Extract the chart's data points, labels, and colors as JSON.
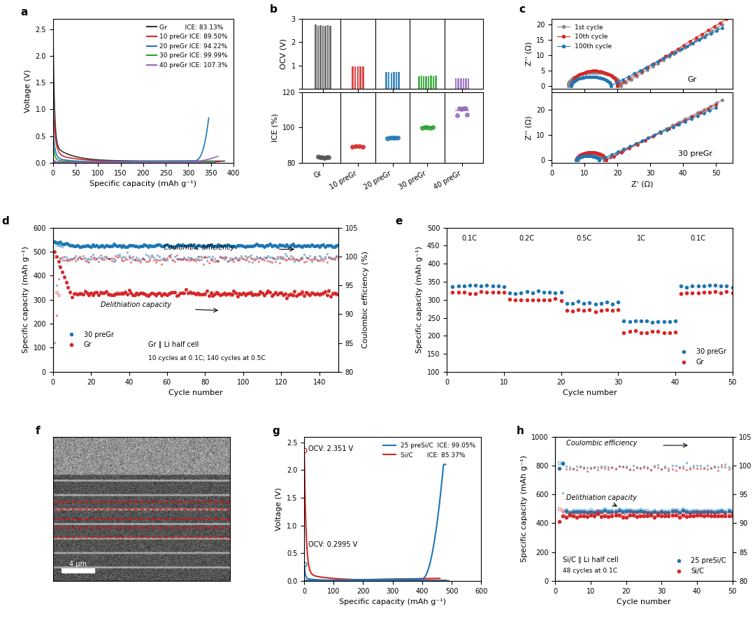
{
  "panel_a": {
    "colors": {
      "Gr": "#333333",
      "10preGr": "#d62728",
      "20preGr": "#1f77b4",
      "30preGr": "#2ca02c",
      "40preGr": "#9467bd"
    },
    "xlabel": "Specific capacity (mAh g⁻¹)",
    "ylabel": "Voltage (V)",
    "xlim": [
      0,
      400
    ],
    "ylim": [
      0,
      2.7
    ]
  },
  "panel_b": {
    "categories": [
      "Gr",
      "10 preGr",
      "20 preGr",
      "30 preGr",
      "40 preGr"
    ],
    "colors": [
      "#555555",
      "#d62728",
      "#1f77b4",
      "#2ca02c",
      "#9467bd"
    ],
    "ocv_values": [
      [
        2.75,
        2.7,
        2.72,
        2.68,
        2.7,
        2.71,
        2.69
      ],
      [
        0.97,
        0.96,
        0.95,
        0.97,
        0.95
      ],
      [
        0.72,
        0.71,
        0.7,
        0.72,
        0.71,
        0.73
      ],
      [
        0.55,
        0.56,
        0.55,
        0.54,
        0.55,
        0.56,
        0.55,
        0.56
      ],
      [
        0.45,
        0.46,
        0.45,
        0.46,
        0.45,
        0.44
      ]
    ],
    "ice_values": [
      [
        83.5,
        83.0,
        83.2,
        82.8,
        83.1,
        82.9
      ],
      [
        89.0,
        89.5,
        89.3,
        89.2
      ],
      [
        94.0,
        94.3,
        94.2,
        94.1,
        94.4
      ],
      [
        99.9,
        100.1,
        100.0,
        99.8,
        100.2
      ],
      [
        107.0,
        111.0,
        110.5,
        111.0,
        110.8,
        107.5
      ]
    ],
    "ocv_ylabel": "OCV (V)",
    "ice_ylabel": "ICE (%)",
    "ocv_ylim": [
      0,
      3
    ],
    "ice_ylim": [
      80,
      120
    ],
    "ice_yticks": [
      80,
      100,
      120
    ]
  },
  "panel_c": {
    "colors": {
      "1st": "#888888",
      "10th": "#d62728",
      "100th": "#1f77b4"
    },
    "xlabel": "Z' (Ω)",
    "ylabel": "Z'' (Ω)"
  },
  "panel_d": {
    "xlabel": "Cycle number",
    "ylabel_left": "Specific capacity (mAh g⁻¹)",
    "ylabel_right": "Coulombic efficiency (%)",
    "color1": "#1f77b4",
    "color2": "#d62728"
  },
  "panel_e": {
    "xlabel": "Cycle number",
    "ylabel": "Specific capacity (mAh g⁻¹)",
    "rate_labels": [
      "0.1C",
      "0.2C",
      "0.5C",
      "1C",
      "0.1C"
    ],
    "rate_x": [
      4,
      14,
      24,
      34,
      44
    ],
    "color1": "#1f77b4",
    "color2": "#d62728"
  },
  "panel_f": {
    "scale_bar": "4 μm"
  },
  "panel_g": {
    "colors": {
      "preSiC": "#1f77b4",
      "SiC": "#d62728"
    },
    "xlabel": "Specific capacity (mAh g⁻¹)",
    "ylabel": "Voltage (V)",
    "xlim": [
      0,
      600
    ],
    "ylim": [
      0,
      2.6
    ]
  },
  "panel_h": {
    "xlabel": "Cycle number",
    "ylabel_left": "Specific capacity (mAh g⁻¹)",
    "ylabel_right": "Coulombic efficiency (%)",
    "color1": "#1f77b4",
    "color2": "#d62728"
  }
}
